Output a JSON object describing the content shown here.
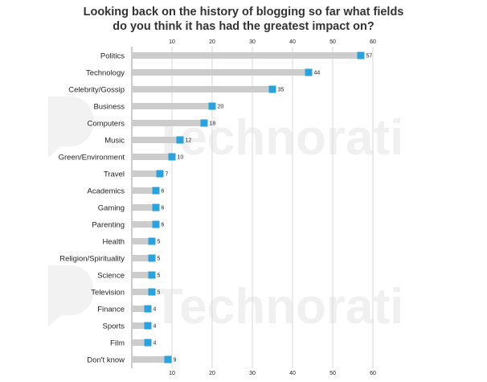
{
  "title_lines": [
    "Looking back on the history of blogging so far what fields",
    "do you think it has had the greatest impact on?"
  ],
  "watermark": {
    "text": "Technorati"
  },
  "chart_data": {
    "type": "bar",
    "orientation": "horizontal",
    "title": "Looking back on the history of blogging so far what fields do you think it has had the greatest impact on?",
    "categories": [
      "Politics",
      "Technology",
      "Celebrity/Gossip",
      "Business",
      "Computers",
      "Music",
      "Green/Environment",
      "Travel",
      "Academics",
      "Gaming",
      "Parenting",
      "Health",
      "Religion/Spirituality",
      "Science",
      "Television",
      "Finance",
      "Sports",
      "Film",
      "Don't know"
    ],
    "values": [
      57,
      44,
      35,
      20,
      18,
      12,
      10,
      7,
      6,
      6,
      6,
      5,
      5,
      5,
      5,
      4,
      4,
      4,
      9
    ],
    "xlim": [
      0,
      60
    ],
    "xticks": [
      10,
      20,
      30,
      40,
      50,
      60
    ],
    "grid": true,
    "colors": {
      "bar": "#cccccc",
      "marker": "#29a3dd",
      "grid": "#d9d9d9",
      "axis": "#999999",
      "text": "#222222",
      "watermark": "#f2f2f2"
    }
  }
}
